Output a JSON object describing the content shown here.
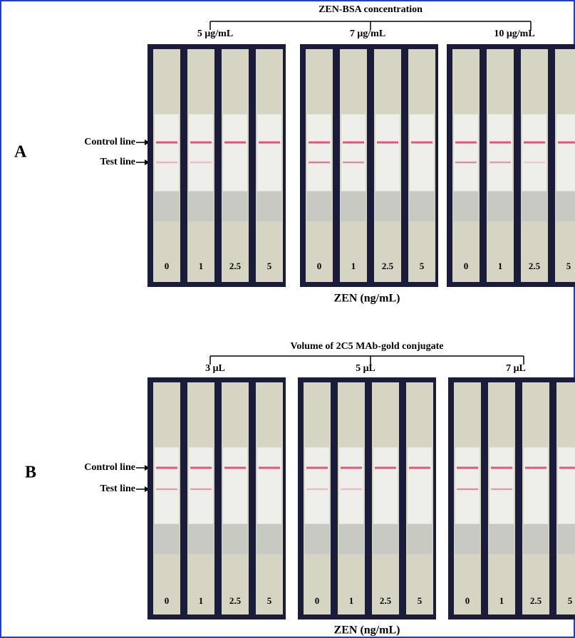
{
  "panels": [
    {
      "label": "A",
      "header": "ZEN-BSA concentration",
      "groups": [
        {
          "label": "5 μg/mL",
          "strips": [
            "0",
            "1",
            "2.5",
            "5"
          ]
        },
        {
          "label": "7 μg/mL",
          "strips": [
            "0",
            "1",
            "2.5",
            "5"
          ]
        },
        {
          "label": "10 μg/mL",
          "strips": [
            "0",
            "1",
            "2.5",
            "5"
          ]
        }
      ],
      "control": "Control line",
      "test": "Test line",
      "axis": "ZEN (ng/mL)"
    },
    {
      "label": "B",
      "header": "Volume of 2C5 MAb-gold conjugate",
      "groups": [
        {
          "label": "3 μL",
          "strips": [
            "0",
            "1",
            "2.5",
            "5"
          ]
        },
        {
          "label": "5 μL",
          "strips": [
            "0",
            "1",
            "2.5",
            "5"
          ]
        },
        {
          "label": "7 μL",
          "strips": [
            "0",
            "1",
            "2.5",
            "5"
          ]
        }
      ],
      "control": "Control line",
      "test": "Test line",
      "axis": "ZEN (ng/mL)"
    }
  ]
}
